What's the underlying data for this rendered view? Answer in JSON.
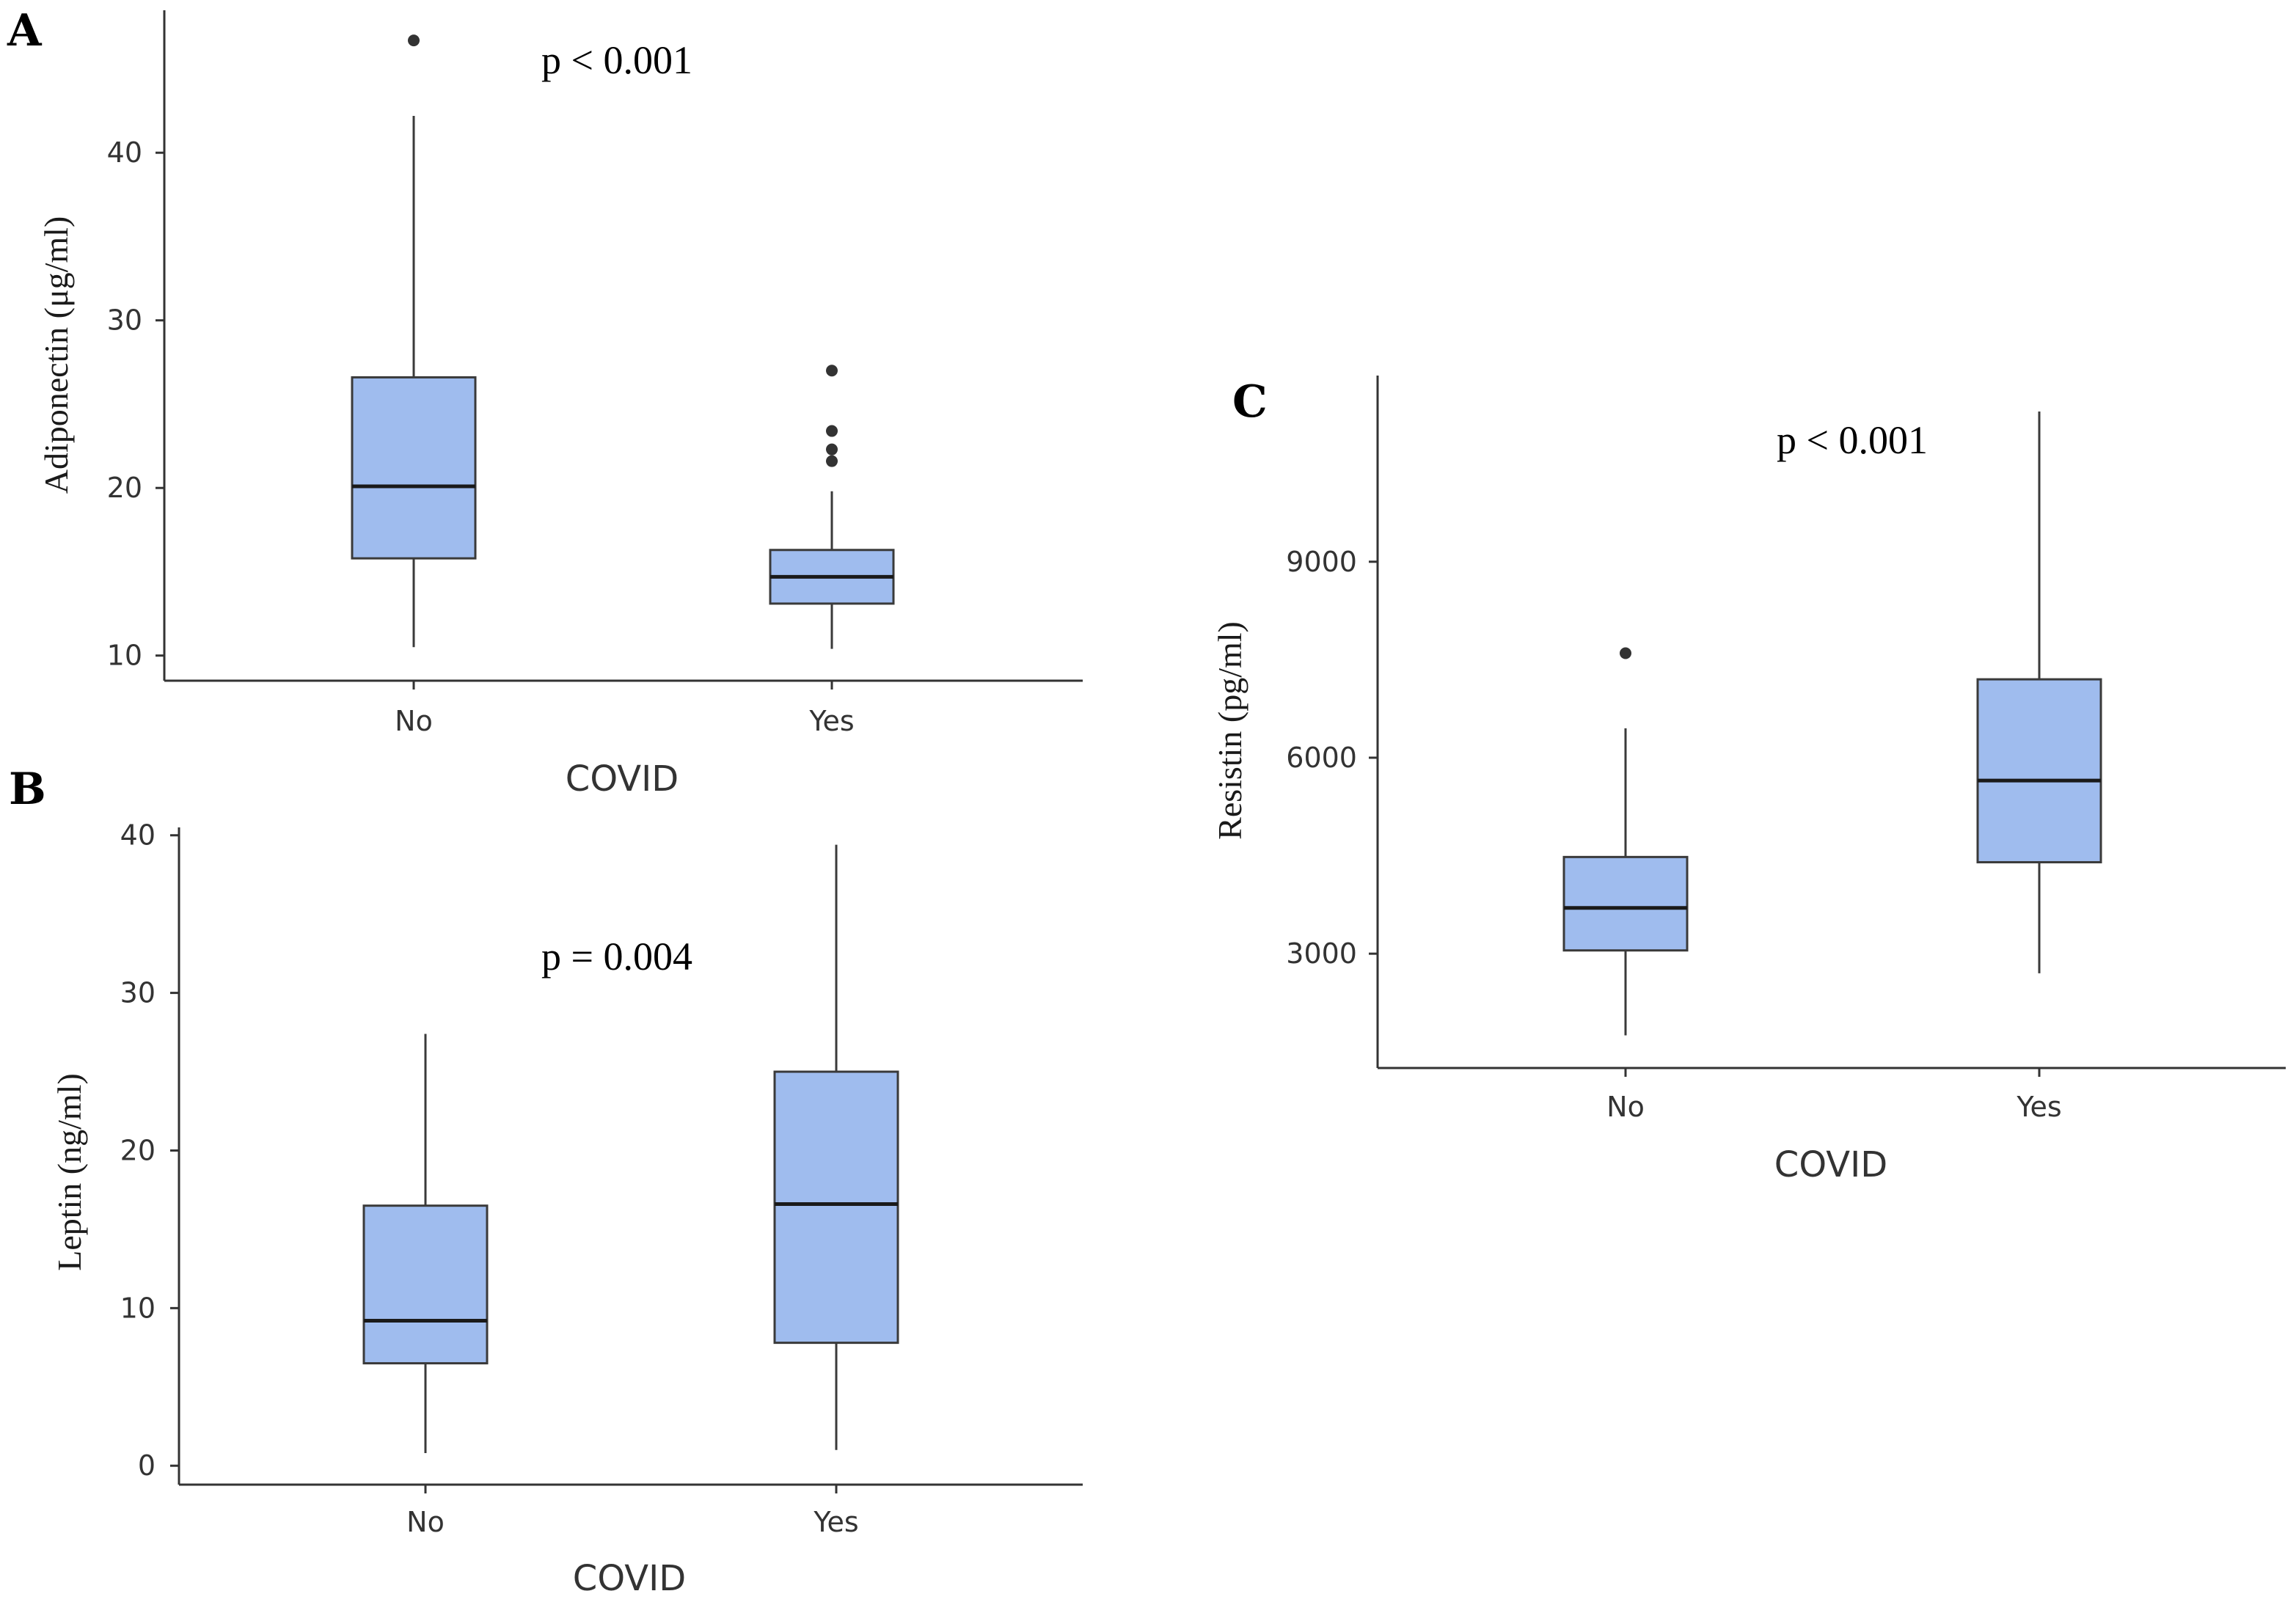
{
  "colors": {
    "box_fill": "#9FBCEE",
    "box_stroke": "#3a3a3a",
    "axis": "#333333",
    "outlier": "#333333"
  },
  "chart_data": [
    {
      "panel": "A",
      "type": "boxplot",
      "xlabel": "COVID",
      "ylabel": "Adiponectin (μg/ml)",
      "annotation": "p < 0.001",
      "ylim": [
        8.5,
        48.5
      ],
      "yticks": [
        10,
        20,
        30,
        40
      ],
      "categories": [
        "No",
        "Yes"
      ],
      "boxes": [
        {
          "category": "No",
          "min": 10.5,
          "q1": 15.8,
          "median": 20.1,
          "q3": 26.6,
          "max": 42.2,
          "outliers": [
            46.7
          ]
        },
        {
          "category": "Yes",
          "min": 10.4,
          "q1": 13.1,
          "median": 14.7,
          "q3": 16.3,
          "max": 19.8,
          "outliers": [
            27.0,
            23.4,
            22.3,
            21.6
          ]
        }
      ]
    },
    {
      "panel": "B",
      "type": "boxplot",
      "xlabel": "COVID",
      "ylabel": "Leptin (ng/ml)",
      "annotation": "p = 0.004",
      "ylim": [
        -1.2,
        40.5
      ],
      "yticks": [
        0,
        10,
        20,
        30,
        40
      ],
      "categories": [
        "No",
        "Yes"
      ],
      "boxes": [
        {
          "category": "No",
          "min": 0.8,
          "q1": 6.5,
          "median": 9.2,
          "q3": 16.5,
          "max": 27.4,
          "outliers": []
        },
        {
          "category": "Yes",
          "min": 1.0,
          "q1": 7.8,
          "median": 16.6,
          "q3": 25.0,
          "max": 39.4,
          "outliers": []
        }
      ]
    },
    {
      "panel": "C",
      "type": "boxplot",
      "xlabel": "COVID",
      "ylabel": "Resistin (pg/ml)",
      "annotation": "p < 0.001",
      "ylim": [
        1250,
        11850
      ],
      "yticks": [
        3000,
        6000,
        9000
      ],
      "categories": [
        "No",
        "Yes"
      ],
      "boxes": [
        {
          "category": "No",
          "min": 1750,
          "q1": 3050,
          "median": 3700,
          "q3": 4480,
          "max": 6450,
          "outliers": [
            7600
          ]
        },
        {
          "category": "Yes",
          "min": 2700,
          "q1": 4400,
          "median": 5650,
          "q3": 7200,
          "max": 11300,
          "outliers": []
        }
      ]
    }
  ]
}
